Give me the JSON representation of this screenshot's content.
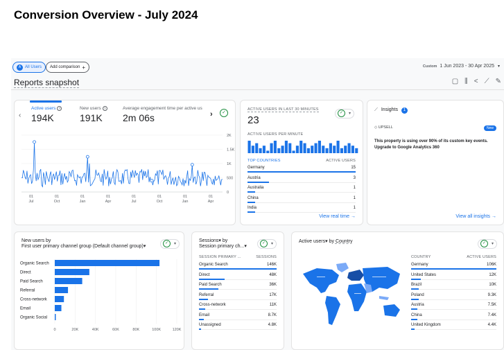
{
  "page_title": "Conversion Overview - July 2024",
  "header": {
    "segment_label": "All Users",
    "segment_initial": "A",
    "add_comparison": "Add comparison",
    "date_prefix": "Custom",
    "date_range": "1 Jun 2023 - 30 Apr 2025"
  },
  "snapshot": {
    "title": "Reports snapshot"
  },
  "overview": {
    "tabs": [
      {
        "label": "Active users",
        "value": "194K"
      },
      {
        "label": "New users",
        "value": "191K"
      },
      {
        "label": "Average engagement time per active us",
        "value": "2m 06s"
      }
    ],
    "y_ticks": [
      "2K",
      "1.5K",
      "1K",
      "500",
      "0"
    ],
    "x_ticks": [
      {
        "day": "01",
        "month": "Jul"
      },
      {
        "day": "01",
        "month": "Oct"
      },
      {
        "day": "01",
        "month": "Jan"
      },
      {
        "day": "01",
        "month": "Apr"
      },
      {
        "day": "01",
        "month": "Jul"
      },
      {
        "day": "01",
        "month": "Oct"
      },
      {
        "day": "01",
        "month": "Jan"
      },
      {
        "day": "01",
        "month": "Apr"
      }
    ]
  },
  "realtime": {
    "title": "ACTIVE USERS IN LAST 30 MINUTES",
    "value": "23",
    "per_minute_label": "ACTIVE USERS PER MINUTE",
    "col_country": "TOP COUNTRIES",
    "col_users": "ACTIVE USERS",
    "rows": [
      {
        "name": "Germany",
        "value": "15",
        "frac": 1.0
      },
      {
        "name": "Austria",
        "value": "3",
        "frac": 0.2
      },
      {
        "name": "Australia",
        "value": "1",
        "frac": 0.07
      },
      {
        "name": "China",
        "value": "1",
        "frac": 0.07
      },
      {
        "name": "India",
        "value": "1",
        "frac": 0.07
      }
    ],
    "per_minute_values": [
      5,
      3,
      4,
      2,
      3,
      1,
      4,
      5,
      2,
      3,
      5,
      4,
      1,
      3,
      5,
      4,
      2,
      3,
      4,
      5,
      3,
      2,
      4,
      3,
      5,
      2,
      3,
      4,
      3,
      2
    ],
    "link": "View real time"
  },
  "insights": {
    "title": "Insights",
    "count": "1",
    "tag": "UPSELL",
    "badge": "New",
    "text": "This property is using over 90% of its custom key events. Upgrade to Google Analytics 360",
    "link": "View all insights"
  },
  "new_users": {
    "title_line1": "New users by",
    "title_line2": "First user primary channel group (Default channel group)",
    "x_ticks": [
      "0",
      "20K",
      "40K",
      "60K",
      "80K",
      "100K",
      "120K"
    ]
  },
  "chart_data": {
    "type": "bar",
    "orientation": "horizontal",
    "categories": [
      "Organic Search",
      "Direct",
      "Paid Search",
      "Referral",
      "Cross-network",
      "Email",
      "Organic Social"
    ],
    "values": [
      103000,
      34000,
      27000,
      13000,
      9000,
      6500,
      1000
    ],
    "xlim": [
      0,
      120000
    ]
  },
  "sessions": {
    "title_line1": "Sessions",
    "title_line1b": "by",
    "title_line2": "Session primary ch...",
    "col_name": "SESSION PRIMARY ...",
    "col_value": "SESSIONS",
    "rows": [
      {
        "name": "Organic Search",
        "value": "146K",
        "frac": 1.0
      },
      {
        "name": "Direct",
        "value": "48K",
        "frac": 0.33
      },
      {
        "name": "Paid Search",
        "value": "36K",
        "frac": 0.25
      },
      {
        "name": "Referral",
        "value": "17K",
        "frac": 0.12
      },
      {
        "name": "Cross-network",
        "value": "11K",
        "frac": 0.08
      },
      {
        "name": "Email",
        "value": "8.7K",
        "frac": 0.06
      },
      {
        "name": "Unassigned",
        "value": "4.8K",
        "frac": 0.03
      }
    ]
  },
  "country": {
    "title_a": "Active users",
    "title_b": "by",
    "title_c": "Country",
    "col_country": "COUNTRY",
    "col_users": "ACTIVE USERS",
    "rows": [
      {
        "name": "Germany",
        "value": "106K",
        "frac": 1.0
      },
      {
        "name": "United States",
        "value": "12K",
        "frac": 0.11
      },
      {
        "name": "Brazil",
        "value": "10K",
        "frac": 0.09
      },
      {
        "name": "Poland",
        "value": "9.3K",
        "frac": 0.09
      },
      {
        "name": "Austria",
        "value": "7.5K",
        "frac": 0.07
      },
      {
        "name": "China",
        "value": "7.4K",
        "frac": 0.07
      },
      {
        "name": "United Kingdom",
        "value": "4.4K",
        "frac": 0.04
      }
    ]
  }
}
